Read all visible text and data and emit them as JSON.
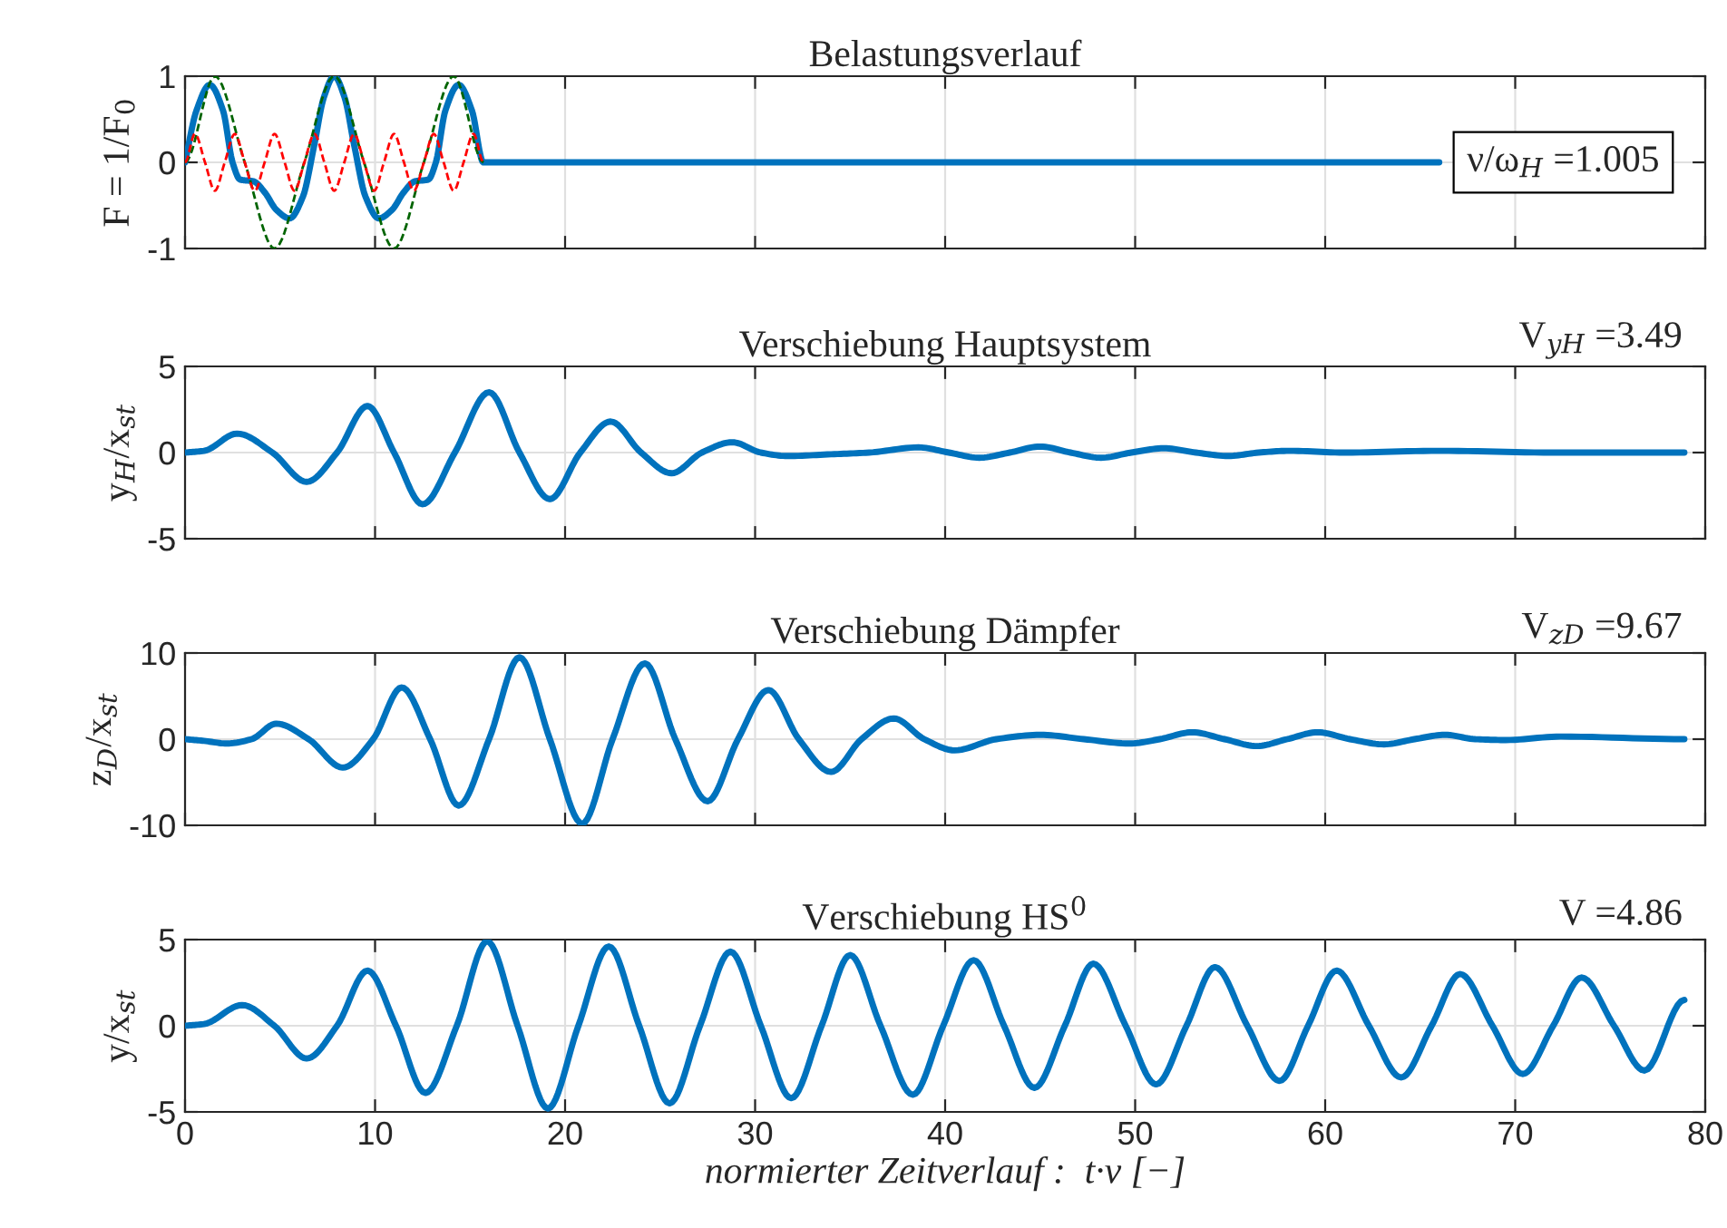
{
  "chart_data": [
    {
      "type": "line",
      "title": "Belastungsverlauf",
      "ylabel": "F = 1/F$_{0}$",
      "annotations": [
        "ν/ω$_{H}$ =1.005"
      ],
      "xlim": [
        0,
        80
      ],
      "xticks": [
        0,
        10,
        20,
        30,
        40,
        50,
        60,
        70,
        80
      ],
      "ylim": [
        -1,
        1
      ],
      "yticks": [
        -1,
        0,
        1
      ],
      "grid": true,
      "tick_labels": "y",
      "series": [
        {
          "color": "#006400",
          "line_style": "dashed",
          "x": [
            0,
            1.57,
            3.14,
            4.71,
            6.28,
            7.85,
            9.42,
            11.0,
            12.57,
            14.14,
            15.71
          ],
          "values": [
            0,
            1,
            0,
            -1,
            0,
            1,
            0,
            -1,
            0,
            1,
            0
          ]
        },
        {
          "color": "#ff0000",
          "line_style": "dashed",
          "x": [
            0,
            0.52,
            1.05,
            1.57,
            2.09,
            2.62,
            3.14,
            3.67,
            4.19,
            4.71,
            5.24,
            5.76,
            6.28,
            6.81,
            7.33,
            7.85,
            8.38,
            8.9,
            9.42,
            9.95,
            10.47,
            11.0,
            11.52,
            12.04,
            12.57,
            13.09,
            13.61,
            14.14,
            14.66,
            15.18,
            15.71
          ],
          "values": [
            0,
            0.33,
            0,
            -0.33,
            0,
            0.33,
            0,
            -0.33,
            0,
            0.33,
            0,
            -0.33,
            0,
            0.33,
            0,
            -0.33,
            0,
            0.33,
            0,
            -0.33,
            0,
            0.33,
            0,
            -0.33,
            0,
            0.33,
            0,
            -0.33,
            0,
            0.33,
            0
          ]
        },
        {
          "color": "#0072bd",
          "line_style": "solid",
          "x": [
            0,
            0.6,
            1.3,
            2.0,
            2.5,
            2.9,
            3.6,
            4.2,
            4.8,
            5.5,
            6.2,
            6.8,
            7.3,
            7.85,
            8.4,
            8.9,
            9.5,
            10.2,
            10.9,
            11.5,
            12.1,
            12.8,
            13.2,
            13.7,
            14.4,
            15.1,
            15.7,
            66
          ],
          "values": [
            0,
            0.6,
            0.9,
            0.6,
            0.0,
            -0.2,
            -0.22,
            -0.35,
            -0.55,
            -0.65,
            -0.4,
            0.2,
            0.75,
            1.0,
            0.75,
            0.2,
            -0.4,
            -0.65,
            -0.55,
            -0.35,
            -0.22,
            -0.2,
            0.0,
            0.6,
            0.9,
            0.6,
            0,
            0
          ]
        }
      ]
    },
    {
      "type": "line",
      "title": "Verschiebung Hauptsystem",
      "ylabel": "y$_{H}$/x$_{st}$",
      "annotations": [
        "V$_{yH}$ =3.49"
      ],
      "xlim": [
        0,
        80
      ],
      "xticks": [
        0,
        10,
        20,
        30,
        40,
        50,
        60,
        70,
        80
      ],
      "ylim": [
        -5,
        5
      ],
      "yticks": [
        -5,
        0,
        5
      ],
      "grid": true,
      "tick_labels": "y",
      "series": [
        {
          "color": "#0072bd",
          "x": [
            0,
            1.0,
            2.74,
            4.6,
            6.4,
            8.0,
            9.6,
            11.0,
            12.5,
            14.2,
            16.0,
            17.6,
            19.2,
            20.8,
            22.4,
            24.0,
            25.6,
            27.2,
            28.8,
            30.3,
            31.7,
            34.0,
            36.0,
            38.6,
            40.2,
            41.8,
            43.4,
            45.0,
            46.6,
            48.2,
            49.8,
            51.5,
            53.2,
            54.9,
            56.5,
            58.1,
            61.0,
            66.0,
            72.0,
            78.9
          ],
          "values": [
            0,
            0.1,
            1.1,
            0,
            -1.7,
            0,
            2.7,
            0,
            -3.0,
            0,
            3.5,
            0,
            -2.7,
            0,
            1.8,
            0,
            -1.2,
            0,
            0.6,
            0,
            -0.2,
            -0.1,
            0,
            0.3,
            0,
            -0.3,
            0,
            0.35,
            0,
            -0.3,
            0,
            0.25,
            0,
            -0.2,
            0,
            0.1,
            0,
            0.1,
            0,
            0
          ]
        }
      ]
    },
    {
      "type": "line",
      "title": "Verschiebung Dämpfer",
      "ylabel": "z$_{D}$/x$_{st}$",
      "annotations": [
        "V$_{zD}$ =9.67"
      ],
      "xlim": [
        0,
        80
      ],
      "xticks": [
        0,
        10,
        20,
        30,
        40,
        50,
        60,
        70,
        80
      ],
      "ylim": [
        -10,
        10
      ],
      "yticks": [
        -10,
        0,
        10
      ],
      "grid": true,
      "tick_labels": "y",
      "series": [
        {
          "color": "#0072bd",
          "x": [
            0,
            1.0,
            2.2,
            3.5,
            4.8,
            6.5,
            8.3,
            9.9,
            11.4,
            12.9,
            14.4,
            16.0,
            17.6,
            19.2,
            20.9,
            22.5,
            24.2,
            25.8,
            27.5,
            29.1,
            30.7,
            32.3,
            34.0,
            35.6,
            37.3,
            38.9,
            40.5,
            42.7,
            45.0,
            47.3,
            49.7,
            51.3,
            53.0,
            54.7,
            56.4,
            58.0,
            59.6,
            61.3,
            63.1,
            64.7,
            66.3,
            67.9,
            69.5,
            72.4,
            78.9
          ],
          "values": [
            0,
            -0.2,
            -0.5,
            0,
            1.8,
            0,
            -3.3,
            0,
            6.0,
            0,
            -7.7,
            0,
            9.5,
            0,
            -9.8,
            0,
            8.8,
            0,
            -7.2,
            0,
            5.7,
            0,
            -3.8,
            0,
            2.4,
            0,
            -1.3,
            0,
            0.5,
            0,
            -0.5,
            0,
            0.8,
            0,
            -0.8,
            0,
            0.8,
            0,
            -0.6,
            0,
            0.5,
            0,
            -0.1,
            0.3,
            0
          ]
        }
      ]
    },
    {
      "type": "line",
      "title": "Verschiebung HS$^{0}$",
      "ylabel": "y/x$_{st}$",
      "xlabel": "normierter Zeitverlauf :  t·ν [−]",
      "annotations": [
        "V =4.86"
      ],
      "xlim": [
        0,
        80
      ],
      "xticks": [
        0,
        10,
        20,
        30,
        40,
        50,
        60,
        70,
        80
      ],
      "ylim": [
        -5,
        5
      ],
      "yticks": [
        -5,
        0,
        5
      ],
      "grid": true,
      "series": [
        {
          "color": "#0072bd",
          "x": [
            0,
            1.0,
            3.0,
            4.7,
            6.4,
            8.0,
            9.6,
            11.1,
            12.65,
            14.3,
            15.9,
            17.5,
            19.1,
            20.7,
            22.3,
            23.9,
            25.5,
            27.1,
            28.7,
            30.3,
            31.9,
            33.5,
            35.0,
            36.6,
            38.3,
            39.9,
            41.5,
            43.1,
            44.7,
            46.3,
            47.8,
            49.5,
            51.1,
            52.7,
            54.2,
            55.9,
            57.6,
            59.1,
            60.6,
            62.3,
            64.0,
            65.6,
            67.1,
            68.8,
            70.4,
            72.0,
            73.5,
            75.2,
            76.8,
            78.9
          ],
          "values": [
            0,
            0.1,
            1.2,
            0,
            -1.9,
            0,
            3.2,
            0,
            -3.9,
            0,
            4.9,
            0,
            -4.8,
            0,
            4.6,
            0,
            -4.5,
            0,
            4.3,
            0,
            -4.2,
            0,
            4.1,
            0,
            -4.0,
            0,
            3.8,
            0,
            -3.6,
            0,
            3.6,
            0,
            -3.4,
            0,
            3.4,
            0,
            -3.2,
            0,
            3.2,
            0,
            -3.0,
            0,
            3.0,
            0,
            -2.8,
            0,
            2.8,
            0,
            -2.6,
            1.5
          ]
        }
      ]
    }
  ]
}
